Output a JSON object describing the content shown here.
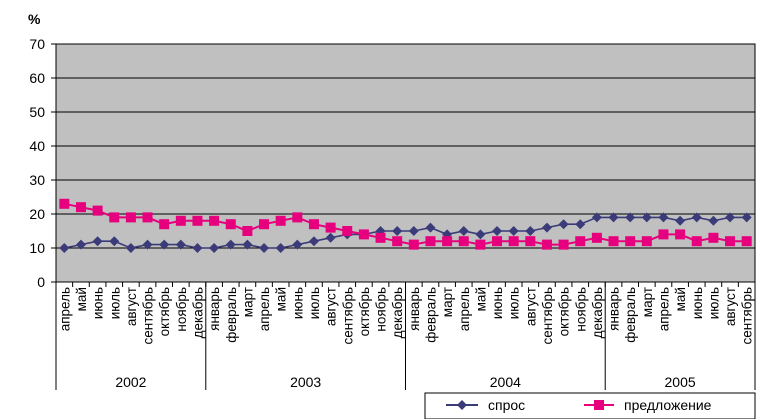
{
  "chart_data": {
    "type": "line",
    "ylabel": "%",
    "ylim": [
      0,
      70
    ],
    "yticks": [
      "0",
      "10",
      "20",
      "30",
      "40",
      "50",
      "60",
      "70"
    ],
    "grid": true,
    "legend_position": "bottom-right",
    "categories": [
      "апрель",
      "май",
      "июнь",
      "июль",
      "август",
      "сентябрь",
      "октябрь",
      "ноябрь",
      "декабрь",
      "январь",
      "февраль",
      "март",
      "апрель",
      "май",
      "июнь",
      "июль",
      "август",
      "сентябрь",
      "октябрь",
      "ноябрь",
      "декабрь",
      "январь",
      "февраль",
      "март",
      "апрель",
      "май",
      "июнь",
      "июль",
      "август",
      "сентябрь",
      "октябрь",
      "ноябрь",
      "декабрь",
      "январь",
      "февраль",
      "март",
      "апрель",
      "май",
      "июнь",
      "июль",
      "август",
      "сентябрь"
    ],
    "years": [
      {
        "label": "2002",
        "start": 0,
        "end": 9
      },
      {
        "label": "2003",
        "start": 9,
        "end": 21
      },
      {
        "label": "2004",
        "start": 21,
        "end": 33
      },
      {
        "label": "2005",
        "start": 33,
        "end": 42
      }
    ],
    "series": [
      {
        "name": "спрос",
        "color": "#3b3b7a",
        "marker": "diamond",
        "values": [
          10,
          11,
          12,
          12,
          10,
          11,
          11,
          11,
          10,
          10,
          11,
          11,
          10,
          10,
          11,
          12,
          13,
          14,
          14,
          15,
          15,
          15,
          16,
          14,
          15,
          14,
          15,
          15,
          15,
          16,
          17,
          17,
          19,
          19,
          19,
          19,
          19,
          18,
          19,
          18,
          19,
          19
        ]
      },
      {
        "name": "предложение",
        "color": "#e6007e",
        "marker": "square",
        "values": [
          23,
          22,
          21,
          19,
          19,
          19,
          17,
          18,
          18,
          18,
          17,
          15,
          17,
          18,
          19,
          17,
          16,
          15,
          14,
          13,
          12,
          11,
          12,
          12,
          12,
          11,
          12,
          12,
          12,
          11,
          11,
          12,
          13,
          12,
          12,
          12,
          14,
          14,
          12,
          13,
          12,
          12
        ]
      }
    ]
  }
}
